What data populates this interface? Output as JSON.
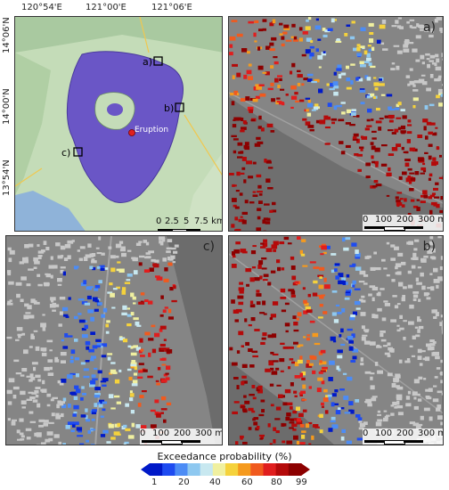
{
  "overview": {
    "lon_ticks": [
      "120°54'E",
      "121°00'E",
      "121°06'E"
    ],
    "lat_ticks": [
      "14°06'N",
      "14°00'N",
      "13°54'N"
    ],
    "eruption_label": "Eruption",
    "box_labels": [
      "a)",
      "b)",
      "c)"
    ],
    "scalebar": [
      "0",
      "2.5",
      "5",
      "7.5 km"
    ]
  },
  "panels": {
    "a": {
      "label": "a)",
      "scalebar": [
        "0",
        "100",
        "200",
        "300 m"
      ]
    },
    "b": {
      "label": "b)",
      "scalebar": [
        "0",
        "100",
        "200",
        "300 m"
      ]
    },
    "c": {
      "label": "c)",
      "scalebar": [
        "0",
        "100",
        "200",
        "300 m"
      ]
    }
  },
  "legend": {
    "title": "Exceedance probability (%)",
    "ticks": [
      "1",
      "20",
      "40",
      "60",
      "80",
      "99"
    ],
    "colors": [
      "#0019c8",
      "#1e4bf0",
      "#4c8cf5",
      "#8ec8f0",
      "#c8e8f0",
      "#f0f0a0",
      "#f5d23c",
      "#f59a1e",
      "#f05a1e",
      "#e01e1e",
      "#b40a0a",
      "#8c0000"
    ]
  }
}
